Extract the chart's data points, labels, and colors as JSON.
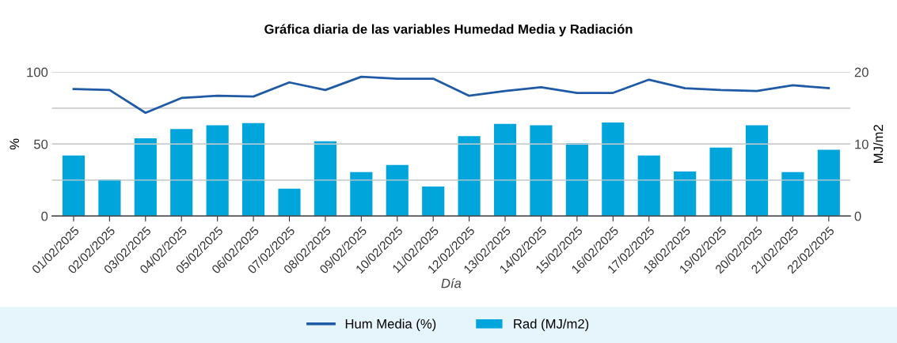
{
  "chart_data": {
    "type": "bar",
    "title": "Gráfica diaria de las variables Humedad Media y Radiación",
    "xlabel": "Día",
    "ylabel": "%",
    "y2label": "MJ/m2",
    "categories": [
      "01/02/2025",
      "02/02/2025",
      "03/02/2025",
      "04/02/2025",
      "05/02/2025",
      "06/02/2025",
      "07/02/2025",
      "08/02/2025",
      "09/02/2025",
      "10/02/2025",
      "11/02/2025",
      "12/02/2025",
      "13/02/2025",
      "14/02/2025",
      "15/02/2025",
      "16/02/2025",
      "17/02/2025",
      "18/02/2025",
      "19/02/2025",
      "20/02/2025",
      "21/02/2025",
      "22/02/2025"
    ],
    "series": [
      {
        "name": "Hum Media (%)",
        "type": "line",
        "color": "#1f5aa6",
        "values": [
          88.2,
          87.5,
          71.7,
          82,
          83.5,
          83,
          92.8,
          87.5,
          96.7,
          95.4,
          95.4,
          83.5,
          86.8,
          89.5,
          85.5,
          85.5,
          94.7,
          88.8,
          87.5,
          86.8,
          90.8,
          88.8
        ]
      },
      {
        "name": "Rad (MJ/m2)",
        "axis": "y2",
        "color": "#00a5dc",
        "values": [
          8.4,
          5.1,
          10.8,
          12.1,
          12.6,
          12.9,
          3.8,
          10.4,
          6.1,
          7.1,
          4.1,
          11.1,
          12.8,
          12.6,
          10.1,
          13.0,
          8.4,
          6.2,
          9.5,
          12.6,
          6.1,
          9.2
        ]
      }
    ],
    "ylim": [
      0,
      100
    ],
    "yticks": [
      0,
      {
        "value": 25,
        "label": null
      },
      50,
      {
        "value": 75,
        "label": null
      },
      100
    ],
    "y2lim": [
      0,
      20
    ],
    "y2ticks": [
      0,
      10,
      20
    ],
    "grid": "y",
    "legend": "bottom",
    "marker": "none",
    "line_style": "solid"
  }
}
